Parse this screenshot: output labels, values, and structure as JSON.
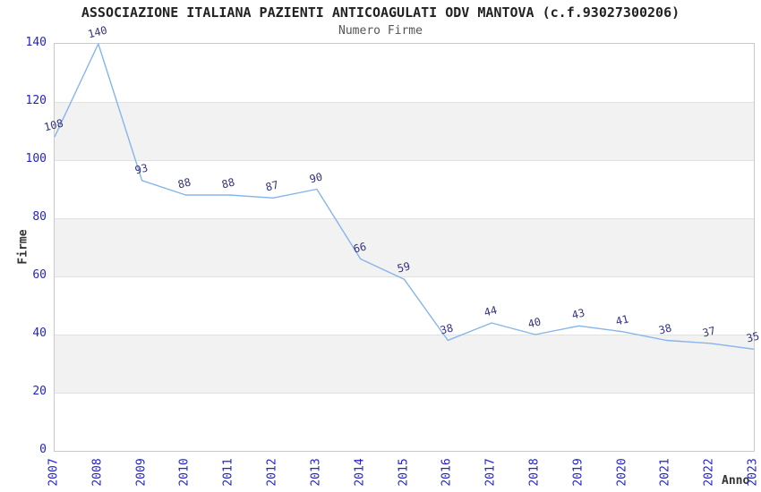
{
  "header": {
    "title": "ASSOCIAZIONE ITALIANA PAZIENTI ANTICOAGULATI ODV MANTOVA (c.f.93027300206)",
    "subtitle": "Numero Firme"
  },
  "chart_data": {
    "type": "line",
    "title": "ASSOCIAZIONE ITALIANA PAZIENTI ANTICOAGULATI ODV MANTOVA (c.f.93027300206)",
    "subtitle": "Numero Firme",
    "xlabel": "Anno",
    "ylabel": "Firme",
    "categories": [
      "2007",
      "2008",
      "2009",
      "2010",
      "2011",
      "2012",
      "2013",
      "2014",
      "2015",
      "2016",
      "2017",
      "2018",
      "2019",
      "2020",
      "2021",
      "2022",
      "2023"
    ],
    "series": [
      {
        "name": "Numero Firme",
        "values": [
          108,
          140,
          93,
          88,
          88,
          87,
          90,
          66,
          59,
          38,
          44,
          40,
          43,
          41,
          38,
          37,
          35
        ]
      }
    ],
    "ylim": [
      0,
      140
    ],
    "yticks": [
      0,
      20,
      40,
      60,
      80,
      100,
      120,
      140
    ],
    "grid": true,
    "point_labels_shown": true,
    "legend_position": "none",
    "colors": {
      "line": "#85b5ea",
      "point_label": "#333380",
      "tick_label": "#2323cc",
      "axis_title": "#333333",
      "title": "#222222",
      "subtitle": "#555555",
      "band": "#f2f2f2",
      "grid": "#e1e1e1",
      "border": "#c9c9c9",
      "background": "#ffffff"
    }
  }
}
